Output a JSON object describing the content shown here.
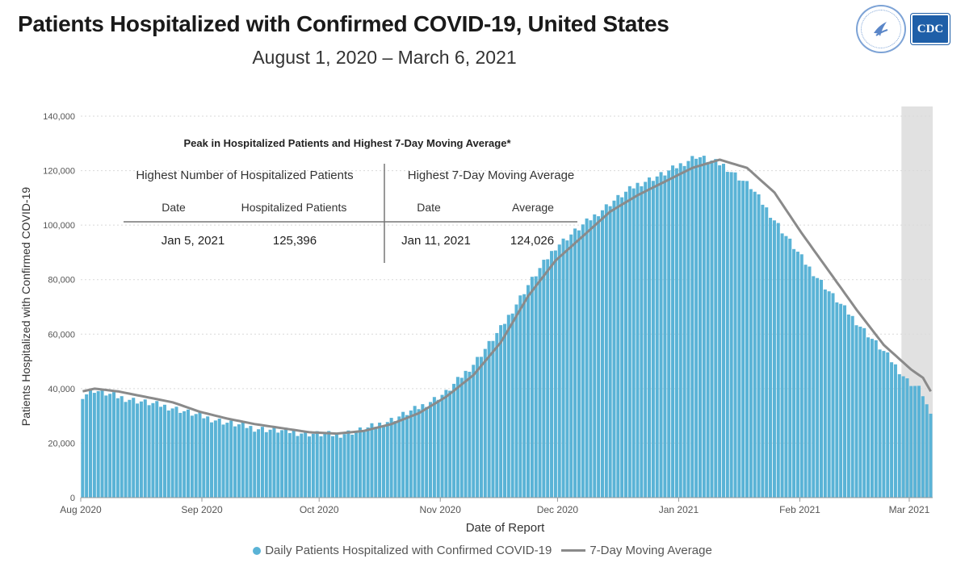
{
  "header": {
    "title": "Patients Hospitalized with Confirmed COVID-19, United States",
    "subtitle": "August 1, 2020 – March 6, 2021",
    "logos": [
      {
        "name": "hhs-seal-icon"
      },
      {
        "name": "cdc-logo-icon",
        "text": "CDC"
      }
    ]
  },
  "peak_table": {
    "heading": "Peak in Hospitalized Patients and Highest 7-Day Moving Average*",
    "left_group": "Highest Number of Hospitalized Patients",
    "right_group": "Highest 7-Day Moving Average",
    "columns": [
      "Date",
      "Hospitalized Patients",
      "Date",
      "Average"
    ],
    "row": [
      "Jan 5, 2021",
      "125,396",
      "Jan 11, 2021",
      "124,026"
    ]
  },
  "legend": {
    "bars": "Daily Patients Hospitalized with Confirmed COVID-19",
    "line": "7-Day Moving Average"
  },
  "colors": {
    "bar": "#5ab3d6",
    "line": "#8a8a8a",
    "shade": "#e1e1e1",
    "gridline": "#d9d9d9"
  },
  "chart_data": {
    "type": "bar",
    "xlabel": "Date of Report",
    "ylabel": "Patients Hospitalized with Confirmed COVID-19",
    "ylim": [
      0,
      140000
    ],
    "yticks": [
      0,
      20000,
      40000,
      60000,
      80000,
      100000,
      120000,
      140000
    ],
    "ytick_labels": [
      "0",
      "20,000",
      "40,000",
      "60,000",
      "80,000",
      "100,000",
      "120,000",
      "140,000"
    ],
    "xlim": [
      "2020-08-01",
      "2021-03-06"
    ],
    "xtick_labels": [
      "Aug 2020",
      "Sep 2020",
      "Oct 2020",
      "Nov 2020",
      "Dec 2020",
      "Jan 2021",
      "Feb 2021",
      "Mar 2021"
    ],
    "xtick_dates": [
      "2020-08-01",
      "2020-09-01",
      "2020-10-01",
      "2020-11-01",
      "2020-12-01",
      "2021-01-01",
      "2021-02-01",
      "2021-03-01"
    ],
    "shaded_region": [
      "2021-02-27",
      "2021-03-06"
    ],
    "legend_position": "bottom",
    "grid": "horizontal dotted",
    "series": [
      {
        "name": "Daily Patients Hospitalized with Confirmed COVID-19",
        "type": "bar",
        "anchors": [
          [
            "2020-08-01",
            37500
          ],
          [
            "2020-08-04",
            39500
          ],
          [
            "2020-08-10",
            37000
          ],
          [
            "2020-08-17",
            35000
          ],
          [
            "2020-08-24",
            33000
          ],
          [
            "2020-08-31",
            30000
          ],
          [
            "2020-09-07",
            27500
          ],
          [
            "2020-09-14",
            25500
          ],
          [
            "2020-09-21",
            24500
          ],
          [
            "2020-09-28",
            23500
          ],
          [
            "2020-10-05",
            23000
          ],
          [
            "2020-10-12",
            25000
          ],
          [
            "2020-10-19",
            28500
          ],
          [
            "2020-10-26",
            33000
          ],
          [
            "2020-11-02",
            38500
          ],
          [
            "2020-11-09",
            49000
          ],
          [
            "2020-11-16",
            62000
          ],
          [
            "2020-11-23",
            78000
          ],
          [
            "2020-11-30",
            92000
          ],
          [
            "2020-12-07",
            100000
          ],
          [
            "2020-12-14",
            108000
          ],
          [
            "2020-12-21",
            115000
          ],
          [
            "2020-12-28",
            119000
          ],
          [
            "2021-01-05",
            125396
          ],
          [
            "2021-01-12",
            122000
          ],
          [
            "2021-01-19",
            114000
          ],
          [
            "2021-01-26",
            100000
          ],
          [
            "2021-02-02",
            86000
          ],
          [
            "2021-02-09",
            74000
          ],
          [
            "2021-02-16",
            63000
          ],
          [
            "2021-02-23",
            52000
          ],
          [
            "2021-02-28",
            43000
          ],
          [
            "2021-03-03",
            40000
          ],
          [
            "2021-03-04",
            38000
          ],
          [
            "2021-03-05",
            34000
          ],
          [
            "2021-03-06",
            29500
          ]
        ]
      },
      {
        "name": "7-Day Moving Average",
        "type": "line",
        "anchors": [
          [
            "2020-08-01",
            39000
          ],
          [
            "2020-08-04",
            40000
          ],
          [
            "2020-08-10",
            39000
          ],
          [
            "2020-08-17",
            37000
          ],
          [
            "2020-08-24",
            35000
          ],
          [
            "2020-08-31",
            31500
          ],
          [
            "2020-09-07",
            29000
          ],
          [
            "2020-09-14",
            27000
          ],
          [
            "2020-09-21",
            25500
          ],
          [
            "2020-09-28",
            24000
          ],
          [
            "2020-10-05",
            23500
          ],
          [
            "2020-10-12",
            24500
          ],
          [
            "2020-10-19",
            27000
          ],
          [
            "2020-10-26",
            31000
          ],
          [
            "2020-11-02",
            37000
          ],
          [
            "2020-11-09",
            45000
          ],
          [
            "2020-11-16",
            57000
          ],
          [
            "2020-11-23",
            74000
          ],
          [
            "2020-11-30",
            87000
          ],
          [
            "2020-12-07",
            96000
          ],
          [
            "2020-12-14",
            105000
          ],
          [
            "2020-12-21",
            111000
          ],
          [
            "2020-12-28",
            116000
          ],
          [
            "2021-01-04",
            121000
          ],
          [
            "2021-01-11",
            124026
          ],
          [
            "2021-01-18",
            121000
          ],
          [
            "2021-01-25",
            112000
          ],
          [
            "2021-02-01",
            97000
          ],
          [
            "2021-02-08",
            83000
          ],
          [
            "2021-02-15",
            69000
          ],
          [
            "2021-02-22",
            56000
          ],
          [
            "2021-03-01",
            47000
          ],
          [
            "2021-03-04",
            44000
          ],
          [
            "2021-03-06",
            39000
          ]
        ]
      }
    ]
  }
}
